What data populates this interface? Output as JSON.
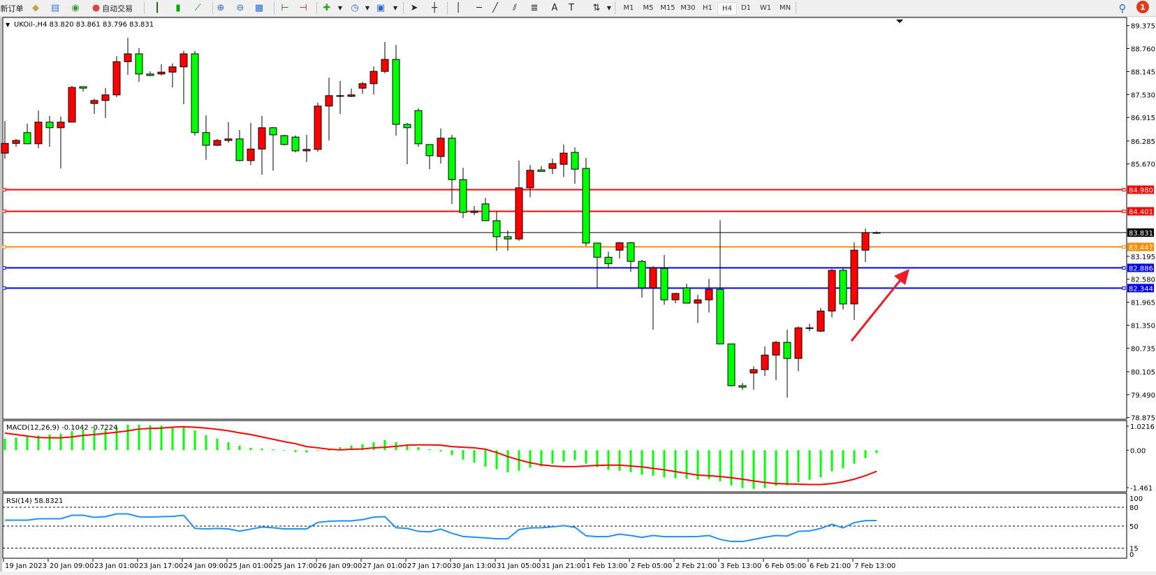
{
  "toolbar": {
    "new_order_label": "新订单",
    "auto_trading_label": "自动交易",
    "icons": [
      "market-watch-icon",
      "data-window-icon",
      "navigator-icon",
      "auto-trading-icon",
      "bar-chart-icon",
      "candlestick-icon",
      "line-chart-icon",
      "zoom-in-icon",
      "zoom-out-icon",
      "tile-windows-icon",
      "auto-scroll-icon",
      "chart-shift-icon",
      "indicators-icon",
      "periods-icon",
      "templates-icon",
      "cursor-icon",
      "crosshair-icon",
      "vertical-line-icon",
      "horizontal-line-icon",
      "trendline-icon",
      "equidistant-channel-icon",
      "fibonacci-icon",
      "text-icon",
      "text-label-icon",
      "arrows-icon"
    ],
    "timeframes": [
      "M1",
      "M5",
      "M15",
      "M30",
      "H1",
      "H4",
      "D1",
      "W1",
      "MN"
    ],
    "active_timeframe": "H4",
    "notification_count": "1"
  },
  "chart": {
    "title": "UKOil-,H4  83.820 83.861 83.796 83.831",
    "colors": {
      "bull": "#ff0000",
      "bear": "#00ff00",
      "outline": "#000000",
      "background": "#ffffff"
    },
    "price_ticks": [
      "89.375",
      "88.760",
      "88.145",
      "87.530",
      "86.915",
      "86.285",
      "85.670",
      "83.195",
      "82.580",
      "81.965",
      "81.350",
      "80.735",
      "80.105",
      "79.490",
      "78.875"
    ],
    "levels": [
      {
        "price": "84.980",
        "color": "#ff0000"
      },
      {
        "price": "84.401",
        "color": "#ff0000"
      },
      {
        "price": "83.831",
        "color": "#000000",
        "current": true
      },
      {
        "price": "83.447",
        "color": "#ff8c00"
      },
      {
        "price": "82.886",
        "color": "#0000ff"
      },
      {
        "price": "82.344",
        "color": "#0000ff"
      }
    ],
    "arrow_color": "#ee1c25",
    "date_labels": [
      "19 Jan 2023",
      "20 Jan 09:00",
      "23 Jan 01:00",
      "23 Jan 17:00",
      "24 Jan 09:00",
      "25 Jan 01:00",
      "25 Jan 17:00",
      "26 Jan 09:00",
      "27 Jan 01:00",
      "27 Jan 17:00",
      "30 Jan 13:00",
      "31 Jan 05:00",
      "31 Jan 21:00",
      "1 Feb 13:00",
      "2 Feb 05:00",
      "2 Feb 21:00",
      "3 Feb 13:00",
      "6 Feb 05:00",
      "6 Feb 21:00",
      "7 Feb 13:00"
    ]
  },
  "macd": {
    "label": "MACD(12,26,9) -0.1042 -0.7224",
    "ticks": [
      "1.0216",
      "0.00",
      "-1.461"
    ],
    "histogram_color": "#00ff00",
    "signal_color": "#ff0000"
  },
  "rsi": {
    "label": "RSI(14) 58.8321",
    "ticks": [
      "100",
      "80",
      "50",
      "15",
      "0"
    ],
    "levels": [
      80,
      50,
      15
    ],
    "line_color": "#1e90ff"
  },
  "chart_data": [
    {
      "type": "candlestick",
      "title": "UKOil-,H4",
      "ylim": [
        78.875,
        89.375
      ],
      "ohlc": [
        [
          85.96,
          86.82,
          85.81,
          86.22
        ],
        [
          86.22,
          86.34,
          86.13,
          86.3
        ],
        [
          86.51,
          86.75,
          86.21,
          86.21
        ],
        [
          86.21,
          87.1,
          86.09,
          86.79
        ],
        [
          86.79,
          86.96,
          86.13,
          86.64
        ],
        [
          86.64,
          86.94,
          85.55,
          86.79
        ],
        [
          86.79,
          87.76,
          86.79,
          87.72
        ],
        [
          87.74,
          87.74,
          87.61,
          87.7
        ],
        [
          87.29,
          87.42,
          87.01,
          87.37
        ],
        [
          87.37,
          87.7,
          86.9,
          87.52
        ],
        [
          87.52,
          88.56,
          87.46,
          88.41
        ],
        [
          88.41,
          89.05,
          88.06,
          88.62
        ],
        [
          88.62,
          88.77,
          87.87,
          88.08
        ],
        [
          88.08,
          88.15,
          88.02,
          88.04
        ],
        [
          88.08,
          88.34,
          88.04,
          88.13
        ],
        [
          88.13,
          88.36,
          87.72,
          88.27
        ],
        [
          88.27,
          88.7,
          87.27,
          88.62
        ],
        [
          88.62,
          88.7,
          86.43,
          86.51
        ],
        [
          86.51,
          86.97,
          85.78,
          86.17
        ],
        [
          86.17,
          86.34,
          86.15,
          86.3
        ],
        [
          86.3,
          86.79,
          86.24,
          86.34
        ],
        [
          86.34,
          86.58,
          85.74,
          85.76
        ],
        [
          85.76,
          86.77,
          85.64,
          86.07
        ],
        [
          86.07,
          86.96,
          85.38,
          86.64
        ],
        [
          86.64,
          86.66,
          85.49,
          86.45
        ],
        [
          86.43,
          86.45,
          86.17,
          86.19
        ],
        [
          86.39,
          86.43,
          85.98,
          86.02
        ],
        [
          86.02,
          86.45,
          85.72,
          86.06
        ],
        [
          86.06,
          87.31,
          86.0,
          87.22
        ],
        [
          87.22,
          87.98,
          86.3,
          87.5
        ],
        [
          87.5,
          87.89,
          87.01,
          87.49
        ],
        [
          87.48,
          87.69,
          87.46,
          87.52
        ],
        [
          87.7,
          87.87,
          87.55,
          87.82
        ],
        [
          87.82,
          88.28,
          87.53,
          88.15
        ],
        [
          88.15,
          88.94,
          88.1,
          88.47
        ],
        [
          88.47,
          88.86,
          86.43,
          86.73
        ],
        [
          86.73,
          86.77,
          85.66,
          86.64
        ],
        [
          87.1,
          87.16,
          86.13,
          86.21
        ],
        [
          86.19,
          86.19,
          85.53,
          85.89
        ],
        [
          85.87,
          86.62,
          85.68,
          86.36
        ],
        [
          86.36,
          86.45,
          84.6,
          85.25
        ],
        [
          85.25,
          85.57,
          84.22,
          84.37
        ],
        [
          84.37,
          84.54,
          84.3,
          84.41
        ],
        [
          84.6,
          84.76,
          84.15,
          84.15
        ],
        [
          84.15,
          84.41,
          83.34,
          83.72
        ],
        [
          83.72,
          83.89,
          83.34,
          83.66
        ],
        [
          83.66,
          85.76,
          83.61,
          85.03
        ],
        [
          85.03,
          85.64,
          84.78,
          85.5
        ],
        [
          85.51,
          85.61,
          85.46,
          85.47
        ],
        [
          85.55,
          85.81,
          85.4,
          85.68
        ],
        [
          85.66,
          86.19,
          85.32,
          85.96
        ],
        [
          85.98,
          86.11,
          85.14,
          85.53
        ],
        [
          85.55,
          85.83,
          83.47,
          83.55
        ],
        [
          83.55,
          83.55,
          82.35,
          83.17
        ],
        [
          83.17,
          83.32,
          82.87,
          83.0
        ],
        [
          83.36,
          83.58,
          83.14,
          83.56
        ],
        [
          83.56,
          83.58,
          82.78,
          83.06
        ],
        [
          83.06,
          83.1,
          82.09,
          82.35
        ],
        [
          82.35,
          82.93,
          81.23,
          82.89
        ],
        [
          82.87,
          83.23,
          81.9,
          82.03
        ],
        [
          82.03,
          82.22,
          81.94,
          82.2
        ],
        [
          82.35,
          82.46,
          81.94,
          81.94
        ],
        [
          81.94,
          82.16,
          81.41,
          82.03
        ],
        [
          82.03,
          82.59,
          81.69,
          82.31
        ],
        [
          82.31,
          84.16,
          80.85,
          80.85
        ],
        [
          80.85,
          80.85,
          79.71,
          79.73
        ],
        [
          79.73,
          79.8,
          79.62,
          79.69
        ],
        [
          80.07,
          80.25,
          79.62,
          80.16
        ],
        [
          80.16,
          80.78,
          79.99,
          80.55
        ],
        [
          80.55,
          80.93,
          79.88,
          80.89
        ],
        [
          80.89,
          81.23,
          79.41,
          80.46
        ],
        [
          80.46,
          81.32,
          80.12,
          81.28
        ],
        [
          81.28,
          81.39,
          81.19,
          81.27
        ],
        [
          81.19,
          81.81,
          81.17,
          81.73
        ],
        [
          81.73,
          82.86,
          81.56,
          82.82
        ],
        [
          82.82,
          82.89,
          81.77,
          81.92
        ],
        [
          81.92,
          83.57,
          81.49,
          83.36
        ],
        [
          83.36,
          83.94,
          83.04,
          83.83
        ],
        [
          83.82,
          83.861,
          83.796,
          83.831
        ]
      ]
    },
    {
      "type": "bar",
      "title": "MACD(12,26,9)",
      "ylim": [
        -1.461,
        1.0216
      ],
      "histogram": [
        0.39,
        0.43,
        0.47,
        0.5,
        0.53,
        0.56,
        0.65,
        0.7,
        0.7,
        0.72,
        0.79,
        0.87,
        0.87,
        0.84,
        0.84,
        0.79,
        0.79,
        0.67,
        0.51,
        0.39,
        0.27,
        0.15,
        0.08,
        0.06,
        0.03,
        -0.02,
        -0.07,
        -0.08,
        -0.02,
        0.0,
        0.1,
        0.15,
        0.2,
        0.27,
        0.34,
        0.27,
        0.2,
        0.1,
        0.03,
        -0.05,
        -0.17,
        -0.32,
        -0.43,
        -0.56,
        -0.65,
        -0.75,
        -0.7,
        -0.6,
        -0.56,
        -0.46,
        -0.39,
        -0.34,
        -0.46,
        -0.58,
        -0.67,
        -0.7,
        -0.75,
        -0.84,
        -0.87,
        -0.93,
        -0.96,
        -0.98,
        -1.01,
        -0.98,
        -1.06,
        -1.2,
        -1.29,
        -1.32,
        -1.29,
        -1.22,
        -1.2,
        -1.1,
        -1.01,
        -0.92,
        -0.72,
        -0.62,
        -0.46,
        -0.27,
        -0.1
      ],
      "signal": [
        0.58,
        0.53,
        0.48,
        0.43,
        0.42,
        0.42,
        0.45,
        0.5,
        0.53,
        0.57,
        0.61,
        0.66,
        0.72,
        0.74,
        0.75,
        0.78,
        0.8,
        0.78,
        0.75,
        0.71,
        0.66,
        0.59,
        0.53,
        0.45,
        0.37,
        0.29,
        0.22,
        0.12,
        0.08,
        0.03,
        0.01,
        0.03,
        0.04,
        0.08,
        0.1,
        0.13,
        0.17,
        0.18,
        0.18,
        0.17,
        0.12,
        0.1,
        0.08,
        0.03,
        -0.08,
        -0.22,
        -0.33,
        -0.43,
        -0.5,
        -0.54,
        -0.56,
        -0.56,
        -0.54,
        -0.52,
        -0.51,
        -0.51,
        -0.54,
        -0.57,
        -0.62,
        -0.67,
        -0.73,
        -0.79,
        -0.85,
        -0.87,
        -0.9,
        -0.94,
        -0.99,
        -1.05,
        -1.1,
        -1.14,
        -1.15,
        -1.16,
        -1.17,
        -1.17,
        -1.14,
        -1.08,
        -0.99,
        -0.87,
        -0.72
      ]
    },
    {
      "type": "line",
      "title": "RSI(14)",
      "ylim": [
        0,
        100
      ],
      "values": [
        59.5,
        59.5,
        59.5,
        61.7,
        61.7,
        61.7,
        67.2,
        67.2,
        63.9,
        65.0,
        69.4,
        69.4,
        64.7,
        64.3,
        65.0,
        65.4,
        67.2,
        46.3,
        45.6,
        46.3,
        45.6,
        41.9,
        45.2,
        48.5,
        47.4,
        45.6,
        45.6,
        45.6,
        55.9,
        57.7,
        58.4,
        58.4,
        60.3,
        64.3,
        65.0,
        47.4,
        46.3,
        41.6,
        40.8,
        45.2,
        38.5,
        33.5,
        32.4,
        31.3,
        29.9,
        29.9,
        44.5,
        47.1,
        47.4,
        48.9,
        50.7,
        48.2,
        34.6,
        33.2,
        33.5,
        37.2,
        35.0,
        32.1,
        35.0,
        33.2,
        33.2,
        33.2,
        33.5,
        35.0,
        28.8,
        25.5,
        25.5,
        28.8,
        32.4,
        35.0,
        34.2,
        41.6,
        42.3,
        46.3,
        52.9,
        47.1,
        55.5,
        58.8,
        58.83
      ]
    }
  ]
}
